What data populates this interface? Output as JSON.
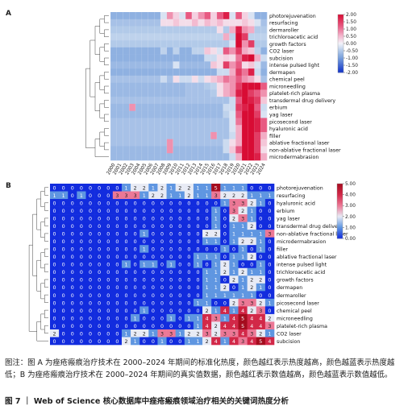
{
  "panel_a_label": "A",
  "panel_b_label": "B",
  "caption": "图注：图 A 为痤疮瘢痕治疗技术在 2000–2024 年期间的标准化热度，颜色越红表示热度越高，颜色越蓝表示热度越低；B 为痤疮瘢痕治疗技术在 2000–2024 年期间的真实值数据，颜色越红表示数值越高，颜色越蓝表示数值越低。",
  "figure_title": "图 7 ｜ Web of Science 核心数据库中痤疮瘢痕领域治疗相关的关键词热度分析",
  "chart_data": [
    {
      "type": "heatmap",
      "panel": "A",
      "years": [
        "2000",
        "2001",
        "2002",
        "2003",
        "2004",
        "2005",
        "2006",
        "2007",
        "2008",
        "2009",
        "2010",
        "2011",
        "2012",
        "2013",
        "2014",
        "2015",
        "2016",
        "2017",
        "2018",
        "2019",
        "2020",
        "2021",
        "2022",
        "2023",
        "2024"
      ],
      "rows": [
        "photorejuvenation",
        "resurfacing",
        "dermaroller",
        "trichloroacetic acid",
        "growth factors",
        "CO2 laser",
        "subcision",
        "intense pulsed light",
        "dermapen",
        "chemical peel",
        "microneedling",
        "platelet-rich plasma",
        "transdermal drug delivery",
        "erbium",
        "yag laser",
        "picosecond laser",
        "hyaluronic acid",
        "filler",
        "ablative fractional laser",
        "non-ablative fractional laser",
        "microdermabrasion"
      ],
      "values": [
        [
          -0.8,
          -0.8,
          -0.8,
          -0.8,
          -0.8,
          -0.8,
          -0.8,
          -0.8,
          -0.2,
          0.8,
          0.3,
          -0.2,
          1.2,
          0.3,
          0.8,
          1.2,
          0.3,
          1.2,
          1.8,
          -0.2,
          1.2,
          0.3,
          -0.2,
          -0.8,
          -0.8
        ],
        [
          -0.6,
          -0.6,
          -0.6,
          -0.6,
          -0.6,
          -0.6,
          -0.6,
          -0.6,
          0.2,
          0.2,
          0.4,
          0.2,
          0.2,
          0.5,
          0.2,
          0.5,
          0.3,
          0.5,
          0.2,
          0.2,
          0.2,
          0.4,
          0.2,
          -0.2,
          -0.6
        ],
        [
          -0.5,
          -0.5,
          -0.5,
          -0.5,
          -0.5,
          -0.5,
          -0.5,
          -0.5,
          -0.5,
          -0.5,
          -0.5,
          -0.5,
          -0.5,
          -0.5,
          -0.5,
          -0.5,
          -0.5,
          0.2,
          -0.5,
          0.6,
          1.8,
          0.8,
          0.6,
          -0.5,
          -0.5
        ],
        [
          -0.4,
          -0.4,
          -0.4,
          -0.4,
          -0.4,
          -0.4,
          -0.4,
          -0.4,
          -0.4,
          -0.4,
          -0.4,
          -0.4,
          -0.4,
          -0.4,
          -0.4,
          -0.4,
          -0.4,
          -0.4,
          0.6,
          -0.4,
          2.2,
          1.5,
          -0.4,
          -0.4,
          -0.4
        ],
        [
          -0.5,
          -0.5,
          -0.5,
          -0.5,
          -0.5,
          -0.5,
          -0.5,
          -0.5,
          -0.5,
          -0.5,
          -0.5,
          -0.5,
          -0.5,
          -0.5,
          -0.5,
          -0.5,
          -0.5,
          -0.5,
          -0.5,
          -0.2,
          2.0,
          0.8,
          1.5,
          -0.5,
          -0.5
        ],
        [
          -0.8,
          -0.8,
          -0.8,
          -0.8,
          -0.8,
          -0.8,
          -0.8,
          -0.8,
          -0.4,
          -0.8,
          -0.4,
          -0.8,
          -0.8,
          -0.4,
          -0.4,
          0.4,
          0.2,
          -0.2,
          1.2,
          0.8,
          1.5,
          0.6,
          0.4,
          -0.4,
          -0.8
        ],
        [
          -0.8,
          -0.8,
          -0.8,
          -0.8,
          -0.8,
          -0.8,
          -0.8,
          -0.8,
          -0.8,
          -0.8,
          -0.8,
          -0.8,
          -0.8,
          -0.8,
          -0.8,
          -0.3,
          -0.3,
          0.2,
          0.3,
          0.2,
          1.0,
          1.8,
          2.2,
          0.6,
          -0.3
        ],
        [
          -0.7,
          -0.7,
          -0.7,
          -0.7,
          -0.7,
          -0.7,
          -0.7,
          -0.7,
          -0.7,
          -0.7,
          -0.2,
          -0.7,
          -0.7,
          -0.7,
          -0.7,
          -0.7,
          0.4,
          0.2,
          1.5,
          0.8,
          1.2,
          0.2,
          0.4,
          -0.2,
          -0.7
        ],
        [
          -0.8,
          -0.8,
          -0.8,
          -0.8,
          -0.8,
          -0.8,
          -0.8,
          -0.8,
          -0.8,
          -0.8,
          -0.8,
          -0.8,
          -0.8,
          -0.8,
          -0.8,
          -0.8,
          -0.8,
          -0.3,
          -0.3,
          0.6,
          1.5,
          1.0,
          1.8,
          -0.3,
          -0.8
        ],
        [
          -0.6,
          -0.6,
          -0.6,
          -0.6,
          -0.6,
          -0.6,
          -0.6,
          -0.6,
          -0.3,
          -0.6,
          0.2,
          -0.3,
          -0.3,
          0.2,
          -0.3,
          0.2,
          0.4,
          0.6,
          1.0,
          0.8,
          1.2,
          0.8,
          0.6,
          0.2,
          -0.6
        ],
        [
          -0.7,
          -0.7,
          -0.7,
          -0.7,
          -0.7,
          -0.7,
          -0.7,
          -0.7,
          -0.7,
          -0.7,
          -0.7,
          -0.7,
          -0.6,
          -0.6,
          -0.6,
          -0.5,
          -0.4,
          0.2,
          0.6,
          0.8,
          1.5,
          2.0,
          2.2,
          2.0,
          1.2
        ],
        [
          -0.7,
          -0.7,
          -0.7,
          -0.7,
          -0.7,
          -0.7,
          -0.7,
          -0.7,
          -0.7,
          -0.7,
          -0.7,
          -0.7,
          -0.6,
          -0.6,
          -0.6,
          -0.6,
          -0.5,
          0.2,
          0.6,
          0.8,
          1.8,
          2.2,
          1.5,
          1.2,
          0.8
        ],
        [
          -0.6,
          -0.6,
          -0.6,
          -0.6,
          -0.6,
          -0.6,
          -0.6,
          -0.6,
          -0.6,
          -0.6,
          -0.6,
          -0.6,
          -0.6,
          -0.6,
          -0.6,
          -0.6,
          -0.6,
          -0.6,
          -0.6,
          -0.3,
          1.2,
          2.2,
          1.8,
          1.5,
          0.4
        ],
        [
          -0.7,
          -0.7,
          -0.7,
          0.8,
          -0.7,
          -0.7,
          -0.7,
          -0.7,
          -0.7,
          -0.7,
          -0.7,
          -0.7,
          -0.7,
          -0.7,
          -0.7,
          -0.7,
          -0.7,
          -0.7,
          -0.3,
          -0.3,
          1.5,
          1.8,
          2.0,
          1.2,
          -0.3
        ],
        [
          -0.7,
          -0.7,
          -0.7,
          -0.7,
          -0.7,
          -0.7,
          -0.7,
          -0.7,
          -0.7,
          -0.7,
          -0.7,
          -0.7,
          -0.7,
          -0.7,
          -0.7,
          -0.7,
          -0.7,
          -0.7,
          -0.4,
          -0.2,
          1.2,
          2.0,
          2.2,
          1.5,
          -0.2
        ],
        [
          -0.6,
          -0.6,
          -0.6,
          -0.6,
          -0.6,
          -0.6,
          -0.6,
          -0.6,
          -0.6,
          -0.6,
          -0.6,
          -0.6,
          -0.6,
          -0.6,
          -0.6,
          -0.6,
          -0.6,
          -0.6,
          -0.6,
          -0.2,
          1.0,
          2.2,
          2.2,
          1.8,
          1.2
        ],
        [
          -0.6,
          -0.6,
          -0.6,
          -0.6,
          -0.6,
          -0.6,
          -0.6,
          -0.6,
          -0.6,
          -0.6,
          -0.6,
          -0.6,
          -0.6,
          -0.6,
          -0.6,
          -0.6,
          -0.6,
          -0.6,
          -0.6,
          -0.2,
          0.6,
          2.2,
          2.0,
          1.8,
          1.2
        ],
        [
          -0.6,
          -0.6,
          -0.6,
          -0.6,
          -0.6,
          -0.6,
          -0.6,
          -0.6,
          -0.6,
          -0.6,
          -0.6,
          -0.6,
          -0.6,
          -0.6,
          -0.6,
          -0.6,
          0.8,
          -0.6,
          -0.6,
          -0.3,
          0.6,
          2.0,
          2.2,
          1.5,
          0.6
        ],
        [
          -0.6,
          -0.6,
          -0.6,
          -0.6,
          -0.6,
          -0.6,
          -0.6,
          -0.6,
          -0.6,
          0.8,
          -0.6,
          -0.6,
          -0.6,
          -0.6,
          -0.6,
          -0.6,
          -0.6,
          -0.6,
          -0.3,
          0.2,
          0.6,
          2.2,
          2.2,
          1.5,
          0.4
        ],
        [
          -0.7,
          -0.7,
          -0.7,
          -0.7,
          -0.7,
          -0.7,
          -0.7,
          -0.7,
          -0.7,
          0.8,
          -0.7,
          -0.7,
          -0.7,
          -0.7,
          -0.7,
          -0.7,
          -0.7,
          -0.7,
          -0.3,
          0.4,
          1.2,
          2.2,
          2.0,
          1.5,
          0.2
        ],
        [
          -0.7,
          -0.7,
          -0.7,
          -0.7,
          -0.7,
          -0.7,
          -0.7,
          -0.7,
          -0.7,
          -0.7,
          -0.7,
          -0.7,
          -0.7,
          -0.7,
          -0.7,
          -0.7,
          -0.7,
          -0.7,
          -0.7,
          -0.3,
          0.6,
          2.2,
          2.2,
          1.8,
          0.6
        ]
      ],
      "colorbar": {
        "ticks": [
          2.0,
          1.5,
          1.0,
          0.5,
          0.0,
          -0.5,
          -1.0,
          -1.5,
          -2.0
        ],
        "labels": [
          "2.00",
          "1.50",
          "1.00",
          "0.50",
          "0.00",
          "-0.50",
          "-1.00",
          "-1.50",
          "-2.00"
        ],
        "range": [
          -2,
          2
        ]
      }
    },
    {
      "type": "heatmap",
      "panel": "B",
      "years": [
        "2000",
        "2001",
        "2002",
        "2003",
        "2004",
        "2005",
        "2006",
        "2007",
        "2008",
        "2009",
        "2010",
        "2011",
        "2012",
        "2013",
        "2014",
        "2015",
        "2016",
        "2017",
        "2018",
        "2019",
        "2020",
        "2021",
        "2022",
        "2023",
        "2024"
      ],
      "rows": [
        "photorejuvenation",
        "resurfacing",
        "hyaluronic acid",
        "erbium",
        "yag laser",
        "transdermal drug delivery",
        "non-ablative fractional laser",
        "microdermabrasion",
        "filler",
        "ablative fractional laser",
        "intense pulsed light",
        "trichloroacetic acid",
        "growth factors",
        "dermapen",
        "dermaroller",
        "picosecond laser",
        "chemical peel",
        "microneedling",
        "platelet-rich plasma",
        "CO2 laser",
        "subcision"
      ],
      "values": [
        [
          0,
          0,
          0,
          0,
          0,
          0,
          0,
          0,
          1,
          2,
          2,
          1,
          2,
          1,
          2,
          2,
          1,
          1,
          5,
          1,
          1,
          1,
          0,
          0,
          0
        ],
        [
          1,
          1,
          0,
          1,
          0,
          0,
          0,
          3,
          3,
          3,
          1,
          2,
          2,
          1,
          1,
          2,
          1,
          1,
          3,
          2,
          2,
          2,
          1,
          1,
          1
        ],
        [
          0,
          0,
          0,
          0,
          0,
          0,
          0,
          0,
          0,
          0,
          0,
          0,
          0,
          0,
          0,
          0,
          0,
          0,
          0,
          1,
          3,
          3,
          2,
          1,
          0
        ],
        [
          0,
          0,
          0,
          0,
          0,
          0,
          0,
          0,
          0,
          0,
          0,
          0,
          0,
          0,
          0,
          0,
          0,
          0,
          1,
          0,
          3,
          2,
          1,
          0,
          0
        ],
        [
          0,
          0,
          0,
          0,
          0,
          0,
          0,
          0,
          0,
          0,
          0,
          0,
          0,
          0,
          0,
          0,
          0,
          0,
          1,
          0,
          2,
          3,
          1,
          0,
          0
        ],
        [
          0,
          0,
          0,
          0,
          0,
          0,
          0,
          0,
          0,
          0,
          0,
          0,
          0,
          0,
          0,
          0,
          0,
          0,
          1,
          0,
          1,
          1,
          2,
          0,
          0
        ],
        [
          0,
          0,
          0,
          0,
          0,
          0,
          0,
          0,
          0,
          0,
          1,
          0,
          0,
          0,
          0,
          0,
          0,
          2,
          2,
          0,
          1,
          1,
          1,
          1,
          3
        ],
        [
          0,
          0,
          0,
          0,
          0,
          0,
          0,
          0,
          0,
          0,
          0,
          0,
          0,
          0,
          0,
          0,
          0,
          1,
          1,
          0,
          1,
          2,
          2,
          1,
          0
        ],
        [
          0,
          0,
          0,
          0,
          0,
          0,
          0,
          0,
          0,
          0,
          1,
          0,
          0,
          0,
          0,
          0,
          0,
          0,
          0,
          1,
          0,
          1,
          0,
          1,
          0
        ],
        [
          0,
          0,
          0,
          0,
          0,
          0,
          0,
          0,
          0,
          0,
          0,
          0,
          0,
          0,
          0,
          0,
          1,
          1,
          1,
          0,
          1,
          1,
          2,
          0,
          0
        ],
        [
          0,
          0,
          0,
          0,
          0,
          0,
          0,
          0,
          1,
          0,
          1,
          1,
          0,
          1,
          0,
          0,
          1,
          0,
          1,
          2,
          1,
          0,
          0,
          1,
          0
        ],
        [
          0,
          0,
          0,
          0,
          0,
          0,
          0,
          0,
          0,
          0,
          0,
          0,
          0,
          0,
          0,
          0,
          0,
          1,
          1,
          2,
          1,
          2,
          1,
          1,
          0
        ],
        [
          0,
          0,
          0,
          0,
          0,
          0,
          0,
          0,
          0,
          0,
          0,
          0,
          0,
          0,
          0,
          0,
          0,
          1,
          1,
          0,
          2,
          1,
          2,
          2,
          0
        ],
        [
          0,
          0,
          0,
          0,
          0,
          0,
          0,
          0,
          0,
          0,
          0,
          0,
          0,
          0,
          0,
          0,
          0,
          1,
          1,
          2,
          0,
          1,
          2,
          1,
          0
        ],
        [
          0,
          0,
          0,
          0,
          0,
          0,
          0,
          0,
          0,
          0,
          0,
          0,
          0,
          0,
          0,
          0,
          0,
          1,
          1,
          1,
          1,
          1,
          1,
          0,
          0
        ],
        [
          0,
          0,
          0,
          0,
          0,
          0,
          0,
          0,
          0,
          0,
          0,
          0,
          0,
          0,
          0,
          0,
          1,
          1,
          0,
          0,
          2,
          3,
          3,
          2,
          1
        ],
        [
          0,
          0,
          0,
          0,
          0,
          0,
          0,
          0,
          0,
          0,
          1,
          0,
          0,
          0,
          0,
          0,
          0,
          2,
          1,
          4,
          1,
          4,
          2,
          3,
          0
        ],
        [
          0,
          0,
          0,
          0,
          0,
          0,
          0,
          0,
          0,
          1,
          0,
          0,
          0,
          1,
          0,
          1,
          1,
          4,
          3,
          1,
          4,
          5,
          4,
          4,
          2
        ],
        [
          0,
          0,
          0,
          0,
          0,
          0,
          0,
          0,
          0,
          0,
          0,
          0,
          0,
          0,
          0,
          0,
          1,
          4,
          2,
          4,
          4,
          5,
          4,
          4,
          3
        ],
        [
          2,
          0,
          0,
          0,
          0,
          0,
          0,
          0,
          1,
          2,
          2,
          1,
          3,
          3,
          1,
          2,
          2,
          3,
          2,
          3,
          3,
          4,
          3,
          2,
          1
        ],
        [
          0,
          0,
          0,
          0,
          0,
          0,
          0,
          0,
          2,
          1,
          0,
          0,
          1,
          0,
          0,
          1,
          1,
          2,
          4,
          1,
          4,
          3,
          4,
          5,
          4
        ]
      ],
      "colorbar": {
        "ticks": [
          5,
          4,
          3,
          2,
          1,
          0
        ],
        "labels": [
          "5.00",
          "4.00",
          "3.00",
          "2.00",
          "1.00",
          "0.00"
        ],
        "range": [
          0,
          5
        ]
      }
    }
  ]
}
